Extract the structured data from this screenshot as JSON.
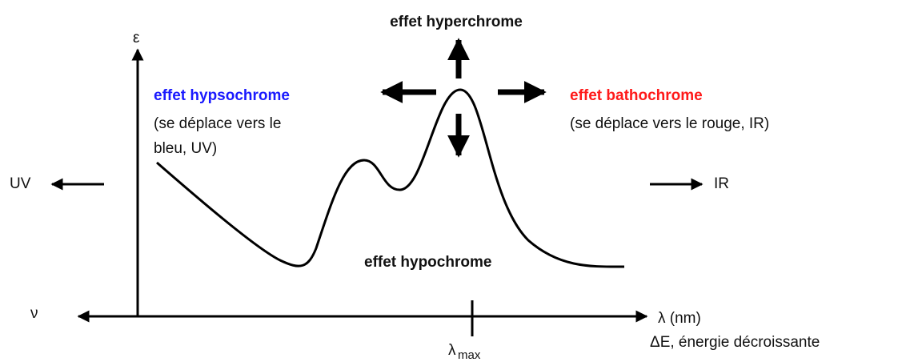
{
  "labels": {
    "hyperchrome": "effet hyperchrome",
    "epsilon": "ε",
    "hypsochrome": "effet hypsochrome",
    "hypsochrome_note_1": "(se déplace vers le",
    "hypsochrome_note_2": "bleu, UV)",
    "bathochrome": "effet bathochrome",
    "bathochrome_note": "(se déplace vers le rouge, IR)",
    "uv": "UV",
    "ir": "IR",
    "hypochrome": "effet hypochrome",
    "nu": "ν",
    "lambda_nm": "λ (nm)",
    "energy": "ΔE, énergie décroissante",
    "lambda_max_symbol": "λ",
    "lambda_max_subscript": "max"
  }
}
